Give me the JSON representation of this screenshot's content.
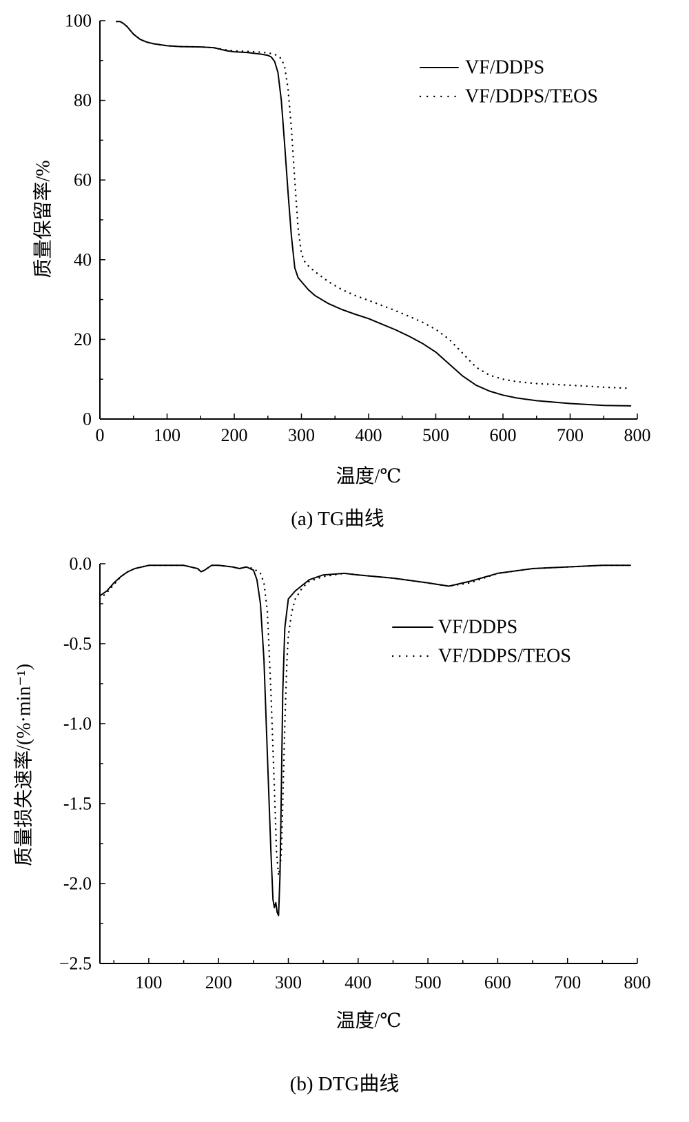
{
  "chart_data": [
    {
      "id": "tg",
      "type": "line",
      "caption": "(a)  TG曲线",
      "xlabel": "温度/℃",
      "ylabel": "质量保留率/%",
      "xlim": [
        0,
        800
      ],
      "ylim": [
        0,
        100
      ],
      "xticks": [
        0,
        100,
        200,
        300,
        400,
        500,
        600,
        700,
        800
      ],
      "xtick_labels": [
        "0",
        "100",
        "200",
        "300",
        "400",
        "500",
        "600",
        "700",
        "800"
      ],
      "yticks": [
        0,
        20,
        40,
        60,
        80,
        100
      ],
      "ytick_labels": [
        "0",
        "20",
        "40",
        "60",
        "80",
        "100"
      ],
      "grid": false,
      "legend_position": "top-right",
      "series": [
        {
          "name": "VF/DDPS",
          "style": "solid",
          "x": [
            25,
            30,
            35,
            40,
            45,
            50,
            60,
            70,
            80,
            100,
            120,
            150,
            170,
            180,
            190,
            200,
            220,
            240,
            250,
            255,
            260,
            265,
            270,
            275,
            280,
            285,
            290,
            295,
            300,
            310,
            320,
            340,
            360,
            380,
            400,
            420,
            440,
            460,
            480,
            500,
            520,
            540,
            560,
            580,
            600,
            620,
            650,
            700,
            750,
            790
          ],
          "y": [
            99.8,
            99.8,
            99.3,
            98.6,
            97.6,
            96.6,
            95.3,
            94.6,
            94.2,
            93.7,
            93.5,
            93.4,
            93.2,
            92.8,
            92.4,
            92.2,
            92.0,
            91.6,
            91.3,
            90.9,
            89.8,
            87.0,
            80.0,
            69.0,
            57.0,
            46.0,
            38.0,
            35.5,
            34.5,
            32.5,
            31.0,
            29.0,
            27.5,
            26.3,
            25.2,
            23.8,
            22.4,
            20.8,
            19.0,
            16.8,
            13.8,
            10.8,
            8.5,
            7.0,
            6.0,
            5.3,
            4.6,
            3.9,
            3.4,
            3.3
          ]
        },
        {
          "name": "VF/DDPS/TEOS",
          "style": "dotted",
          "x": [
            25,
            30,
            35,
            40,
            45,
            50,
            60,
            70,
            80,
            100,
            120,
            150,
            170,
            180,
            190,
            200,
            220,
            240,
            250,
            260,
            270,
            275,
            280,
            285,
            290,
            295,
            300,
            305,
            310,
            320,
            340,
            360,
            380,
            400,
            420,
            440,
            460,
            480,
            500,
            520,
            540,
            560,
            580,
            600,
            620,
            650,
            700,
            750,
            790
          ],
          "y": [
            99.8,
            99.8,
            99.3,
            98.6,
            97.6,
            96.6,
            95.3,
            94.6,
            94.2,
            93.7,
            93.5,
            93.4,
            93.2,
            92.9,
            92.6,
            92.4,
            92.3,
            92.1,
            91.9,
            91.6,
            90.5,
            88.5,
            83.0,
            73.0,
            60.0,
            48.0,
            41.5,
            39.5,
            38.5,
            37.0,
            34.5,
            32.5,
            31.0,
            29.8,
            28.5,
            27.2,
            25.8,
            24.3,
            22.5,
            20.0,
            16.5,
            13.0,
            11.0,
            10.0,
            9.4,
            8.9,
            8.5,
            8.0,
            7.7
          ]
        }
      ]
    },
    {
      "id": "dtg",
      "type": "line",
      "caption": "(b)  DTG曲线",
      "xlabel": "温度/℃",
      "ylabel": "质量损失速率/(%·min⁻¹)",
      "xlim": [
        30,
        800
      ],
      "ylim": [
        -2.5,
        0.0
      ],
      "xticks": [
        100,
        200,
        300,
        400,
        500,
        600,
        700,
        800
      ],
      "xtick_labels": [
        "100",
        "200",
        "300",
        "400",
        "500",
        "600",
        "700",
        "800"
      ],
      "yticks": [
        0.0,
        -0.5,
        -1.0,
        -1.5,
        -2.0,
        -2.5
      ],
      "ytick_labels": [
        "0.0",
        "-0.5",
        "-1.0",
        "-1.5",
        "-2.0",
        "−2.5"
      ],
      "grid": false,
      "legend_position": "upper-right",
      "series": [
        {
          "name": "VF/DDPS",
          "style": "solid",
          "x": [
            30,
            40,
            50,
            60,
            70,
            80,
            100,
            120,
            150,
            170,
            175,
            180,
            190,
            200,
            220,
            230,
            240,
            250,
            255,
            260,
            265,
            270,
            275,
            278,
            280,
            282,
            284,
            286,
            288,
            290,
            292,
            295,
            300,
            310,
            330,
            350,
            380,
            400,
            450,
            500,
            530,
            560,
            600,
            650,
            700,
            750,
            790
          ],
          "y": [
            -0.2,
            -0.17,
            -0.12,
            -0.08,
            -0.05,
            -0.03,
            -0.01,
            -0.01,
            -0.01,
            -0.03,
            -0.05,
            -0.04,
            -0.01,
            -0.01,
            -0.02,
            -0.03,
            -0.02,
            -0.04,
            -0.1,
            -0.25,
            -0.6,
            -1.2,
            -1.8,
            -2.1,
            -2.15,
            -2.12,
            -2.18,
            -2.2,
            -1.95,
            -1.4,
            -0.8,
            -0.4,
            -0.22,
            -0.17,
            -0.1,
            -0.07,
            -0.06,
            -0.07,
            -0.09,
            -0.12,
            -0.14,
            -0.11,
            -0.06,
            -0.03,
            -0.02,
            -0.01,
            -0.01
          ]
        },
        {
          "name": "VF/DDPS/TEOS",
          "style": "dotted",
          "x": [
            30,
            40,
            50,
            60,
            70,
            80,
            100,
            120,
            150,
            170,
            175,
            180,
            190,
            200,
            220,
            230,
            240,
            250,
            260,
            265,
            270,
            275,
            280,
            283,
            286,
            288,
            290,
            292,
            295,
            298,
            300,
            305,
            310,
            320,
            330,
            350,
            380,
            400,
            450,
            500,
            530,
            560,
            600,
            650,
            700,
            750,
            790
          ],
          "y": [
            -0.22,
            -0.18,
            -0.13,
            -0.08,
            -0.05,
            -0.03,
            -0.01,
            -0.01,
            -0.01,
            -0.03,
            -0.05,
            -0.04,
            -0.01,
            -0.01,
            -0.02,
            -0.03,
            -0.02,
            -0.03,
            -0.06,
            -0.12,
            -0.3,
            -0.8,
            -1.4,
            -1.8,
            -1.95,
            -1.9,
            -1.8,
            -1.5,
            -1.0,
            -0.6,
            -0.45,
            -0.3,
            -0.22,
            -0.15,
            -0.11,
            -0.08,
            -0.06,
            -0.07,
            -0.09,
            -0.12,
            -0.14,
            -0.12,
            -0.06,
            -0.03,
            -0.02,
            -0.01,
            -0.01
          ]
        }
      ]
    }
  ]
}
